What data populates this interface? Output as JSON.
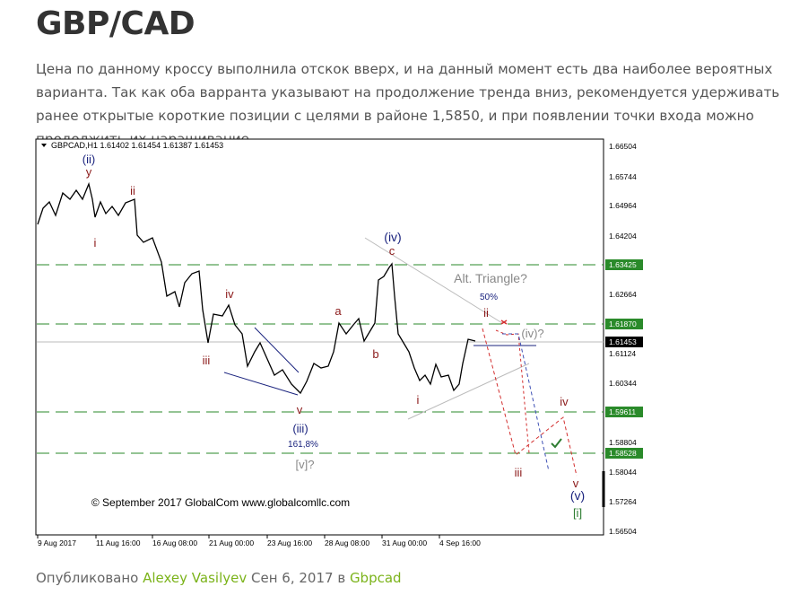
{
  "title": "GBP/CAD",
  "paragraph": "Цена по данному кроссу выполнила отскок вверх, и на данный момент есть два наиболее вероятных варианта. Так как оба варранта указывают на продолжение тренда вниз, рекомендуется удерживать ранее открытые короткие позиции с целями в районе 1,5850, и при появлении точки входа можно продолжить их наращивание.",
  "chart": {
    "header": "GBPCAD,H1  1.61402 1.61454 1.61387 1.61453",
    "price_labels": [
      "1.66504",
      "1.65744",
      "1.64964",
      "1.64204",
      "1.63425",
      "1.62664",
      "1.61870",
      "1.61453",
      "1.61124",
      "1.60344",
      "1.59611",
      "1.58804",
      "1.58528",
      "1.58044",
      "1.57264",
      "1.56504"
    ],
    "time_labels": [
      "9 Aug 2017",
      "11 Aug 16:00",
      "16 Aug 08:00",
      "21 Aug 00:00",
      "23 Aug 16:00",
      "28 Aug 08:00",
      "31 Aug 00:00",
      "4 Sep 16:00"
    ],
    "annotations": [
      "(ii)",
      "y",
      "ii",
      "i",
      "iv",
      "iii",
      "v",
      "(iii)",
      "161,8%",
      "[v]?",
      "a",
      "b",
      "(iv)",
      "c",
      "Alt. Triangle?",
      "50%",
      "ii",
      "(iv)?",
      "i",
      "iv",
      "iii",
      "v",
      "(v)",
      "[i]",
      "© September 2017 GlobalCom www.globalcomllc.com"
    ]
  },
  "footer": {
    "prefix": "Опубликовано",
    "author": "Alexey Vasilyev",
    "date": "Сен 6, 2017 в",
    "category": "Gbpcad"
  }
}
